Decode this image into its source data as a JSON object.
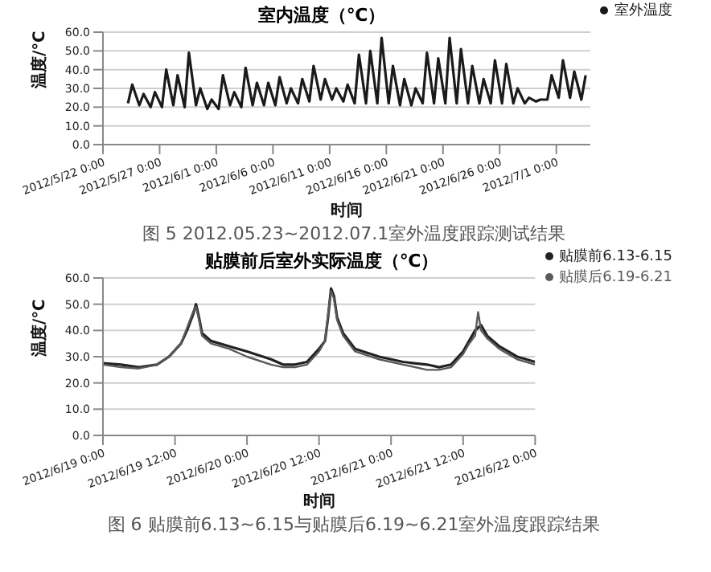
{
  "chart_data": [
    {
      "type": "line",
      "title": "室内温度（℃）",
      "xlabel": "时间",
      "ylabel": "温度/℃",
      "annotations": [
        "图 5  2012.05.23~2012.07.1室外温度跟踪测试结果"
      ],
      "x": [
        "2012-05-24T05:00",
        "2012-05-24T14:00",
        "2012-05-25T05:00",
        "2012-05-25T14:00",
        "2012-05-26T05:00",
        "2012-05-26T14:00",
        "2012-05-27T05:00",
        "2012-05-27T14:00",
        "2012-05-28T05:00",
        "2012-05-28T14:00",
        "2012-05-29T05:00",
        "2012-05-29T14:00",
        "2012-05-30T05:00",
        "2012-05-30T14:00",
        "2012-05-31T05:00",
        "2012-05-31T14:00",
        "2012-06-01T05:00",
        "2012-06-01T14:00",
        "2012-06-02T05:00",
        "2012-06-02T14:00",
        "2012-06-03T05:00",
        "2012-06-03T14:00",
        "2012-06-04T05:00",
        "2012-06-04T14:00",
        "2012-06-05T05:00",
        "2012-06-05T14:00",
        "2012-06-06T05:00",
        "2012-06-06T14:00",
        "2012-06-07T05:00",
        "2012-06-07T14:00",
        "2012-06-08T05:00",
        "2012-06-08T14:00",
        "2012-06-09T05:00",
        "2012-06-09T14:00",
        "2012-06-10T05:00",
        "2012-06-10T14:00",
        "2012-06-11T05:00",
        "2012-06-11T14:00",
        "2012-06-12T05:00",
        "2012-06-12T14:00",
        "2012-06-13T05:00",
        "2012-06-13T14:00",
        "2012-06-14T05:00",
        "2012-06-14T14:00",
        "2012-06-15T05:00",
        "2012-06-15T14:00",
        "2012-06-16T05:00",
        "2012-06-16T14:00",
        "2012-06-17T05:00",
        "2012-06-17T14:00",
        "2012-06-18T05:00",
        "2012-06-18T14:00",
        "2012-06-19T05:00",
        "2012-06-19T14:00",
        "2012-06-20T05:00",
        "2012-06-20T14:00",
        "2012-06-21T05:00",
        "2012-06-21T14:00",
        "2012-06-22T05:00",
        "2012-06-22T14:00",
        "2012-06-23T05:00",
        "2012-06-23T14:00",
        "2012-06-24T05:00",
        "2012-06-24T14:00",
        "2012-06-25T05:00",
        "2012-06-25T14:00",
        "2012-06-26T05:00",
        "2012-06-26T14:00",
        "2012-06-27T05:00",
        "2012-06-27T14:00",
        "2012-06-28T05:00",
        "2012-06-28T14:00",
        "2012-06-29T05:00",
        "2012-06-29T14:00",
        "2012-06-30T05:00",
        "2012-06-30T14:00",
        "2012-07-01T05:00",
        "2012-07-01T14:00",
        "2012-07-02T05:00",
        "2012-07-02T14:00",
        "2012-07-03T05:00",
        "2012-07-03T14:00"
      ],
      "series": [
        {
          "name": "室外温度",
          "color": "#1a1a1a",
          "values": [
            22,
            32,
            21,
            27,
            20,
            28,
            20,
            40,
            21,
            37,
            20,
            49,
            21,
            30,
            19,
            24,
            19,
            37,
            21,
            28,
            20,
            41,
            21,
            33,
            21,
            33,
            21,
            36,
            22,
            30,
            22,
            35,
            23,
            42,
            24,
            35,
            24,
            30,
            23,
            32,
            22,
            48,
            22,
            50,
            22,
            57,
            22,
            42,
            21,
            35,
            21,
            30,
            22,
            49,
            22,
            46,
            22,
            57,
            22,
            51,
            22,
            42,
            22,
            35,
            22,
            45,
            22,
            43,
            22,
            30,
            22,
            25,
            23,
            24,
            24,
            37,
            25,
            45,
            25,
            39,
            24,
            37
          ]
        }
      ],
      "xlim": [
        "2012-05-22",
        "2012-07-04"
      ],
      "xticks": [
        {
          "value": "2012-05-22",
          "label": "2012/5/22 0:00"
        },
        {
          "value": "2012-05-27",
          "label": "2012/5/27 0:00"
        },
        {
          "value": "2012-06-01",
          "label": "2012/6/1 0:00"
        },
        {
          "value": "2012-06-06",
          "label": "2012/6/6 0:00"
        },
        {
          "value": "2012-06-11",
          "label": "2012/6/11 0:00"
        },
        {
          "value": "2012-06-16",
          "label": "2012/6/16 0:00"
        },
        {
          "value": "2012-06-21",
          "label": "2012/6/21 0:00"
        },
        {
          "value": "2012-06-26",
          "label": "2012/6/26 0:00"
        },
        {
          "value": "2012-07-01",
          "label": "2012/7/1 0:00"
        }
      ],
      "ylim": [
        0,
        60
      ],
      "yticks": [
        {
          "value": 0,
          "label": "0.0"
        },
        {
          "value": 10,
          "label": "10.0"
        },
        {
          "value": 20,
          "label": "20.0"
        },
        {
          "value": 30,
          "label": "30.0"
        },
        {
          "value": 40,
          "label": "40.0"
        },
        {
          "value": 50,
          "label": "50.0"
        },
        {
          "value": 60,
          "label": "60.0"
        }
      ],
      "grid": "y",
      "legend": "top right",
      "marker": "none",
      "line_style": "solid"
    },
    {
      "type": "line",
      "title": "贴膜前后室外实际温度（℃）",
      "xlabel": "时间",
      "ylabel": "温度/℃",
      "annotations": [
        "图 6  贴膜前6.13~6.15与贴膜后6.19~6.21室外温度跟踪结果"
      ],
      "x": [
        "2012-06-19T00:00",
        "2012-06-19T03:00",
        "2012-06-19T06:00",
        "2012-06-19T09:00",
        "2012-06-19T11:00",
        "2012-06-19T13:00",
        "2012-06-19T14:00",
        "2012-06-19T15:00",
        "2012-06-19T15:30",
        "2012-06-19T16:00",
        "2012-06-19T16:30",
        "2012-06-19T18:00",
        "2012-06-19T21:00",
        "2012-06-20T00:00",
        "2012-06-20T04:00",
        "2012-06-20T06:00",
        "2012-06-20T08:00",
        "2012-06-20T10:00",
        "2012-06-20T12:00",
        "2012-06-20T13:00",
        "2012-06-20T13:30",
        "2012-06-20T14:00",
        "2012-06-20T14:30",
        "2012-06-20T15:00",
        "2012-06-20T16:00",
        "2012-06-20T18:00",
        "2012-06-20T22:00",
        "2012-06-21T02:00",
        "2012-06-21T06:00",
        "2012-06-21T08:00",
        "2012-06-21T10:00",
        "2012-06-21T12:00",
        "2012-06-21T13:00",
        "2012-06-21T14:00",
        "2012-06-21T14:30",
        "2012-06-21T15:00",
        "2012-06-21T16:00",
        "2012-06-21T18:00",
        "2012-06-21T21:00",
        "2012-06-22T00:00"
      ],
      "series": [
        {
          "name": "贴膜前6.13-6.15",
          "color": "#222222",
          "values": [
            27.5,
            27,
            26,
            27,
            30,
            35,
            40,
            46,
            50,
            45,
            39,
            36,
            34,
            32,
            29,
            27,
            27,
            28,
            33,
            36,
            45,
            56,
            53,
            45,
            39,
            33,
            30,
            28,
            27,
            26,
            27,
            32,
            36,
            40,
            41,
            42,
            38,
            34,
            30,
            28
          ]
        },
        {
          "name": "贴膜后6.19-6.21",
          "color": "#5a5a5a",
          "values": [
            27,
            26,
            25.5,
            27,
            30,
            35,
            41,
            47,
            49,
            44,
            38,
            35,
            33,
            30,
            27,
            26,
            26,
            27,
            32,
            36,
            46,
            55,
            52,
            44,
            38,
            32,
            29,
            27,
            25,
            25,
            26,
            31,
            35,
            38,
            47,
            40,
            37,
            33,
            29,
            27
          ]
        }
      ],
      "xlim": [
        "2012-06-19T00:00",
        "2012-06-22T00:00"
      ],
      "xticks": [
        {
          "value": "2012-06-19T00:00",
          "label": "2012/6/19 0:00"
        },
        {
          "value": "2012-06-19T12:00",
          "label": "2012/6/19 12:00"
        },
        {
          "value": "2012-06-20T00:00",
          "label": "2012/6/20 0:00"
        },
        {
          "value": "2012-06-20T12:00",
          "label": "2012/6/20 12:00"
        },
        {
          "value": "2012-06-21T00:00",
          "label": "2012/6/21 0:00"
        },
        {
          "value": "2012-06-21T12:00",
          "label": "2012/6/21 12:00"
        },
        {
          "value": "2012-06-22T00:00",
          "label": "2012/6/22 0:00"
        }
      ],
      "ylim": [
        0,
        60
      ],
      "yticks": [
        {
          "value": 0,
          "label": "0.0"
        },
        {
          "value": 10,
          "label": "10.0"
        },
        {
          "value": 20,
          "label": "20.0"
        },
        {
          "value": 30,
          "label": "30.0"
        },
        {
          "value": 40,
          "label": "40.0"
        },
        {
          "value": 50,
          "label": "50.0"
        },
        {
          "value": 60,
          "label": "60.0"
        }
      ],
      "grid": "y",
      "legend": "top right",
      "marker": "none",
      "line_style": "solid"
    }
  ]
}
